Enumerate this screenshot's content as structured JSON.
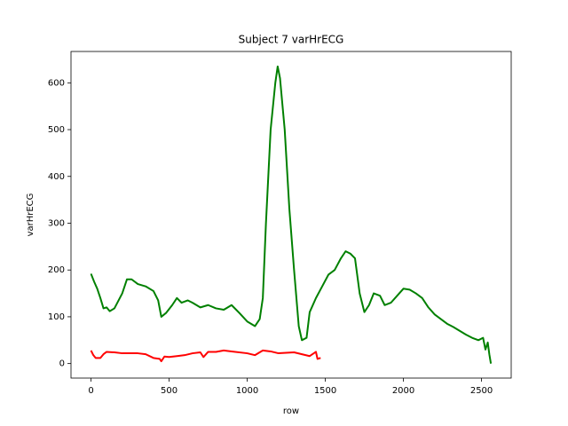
{
  "chart_data": {
    "type": "line",
    "title": "Subject 7 varHrECG",
    "x_label": "row",
    "y_label": "varHrECG",
    "xlim": [
      -128,
      2690
    ],
    "ylim": [
      -31,
      667
    ],
    "xticks": [
      0,
      500,
      1000,
      1500,
      2000,
      2500
    ],
    "yticks": [
      0,
      100,
      200,
      300,
      400,
      500,
      600
    ],
    "series": [
      {
        "color": "#008000",
        "x": [
          0,
          20,
          40,
          60,
          80,
          100,
          120,
          150,
          200,
          230,
          260,
          300,
          350,
          400,
          430,
          450,
          480,
          520,
          550,
          580,
          620,
          650,
          700,
          750,
          800,
          850,
          900,
          950,
          1000,
          1050,
          1080,
          1100,
          1120,
          1150,
          1180,
          1195,
          1210,
          1240,
          1270,
          1300,
          1330,
          1350,
          1380,
          1400,
          1440,
          1480,
          1520,
          1560,
          1600,
          1630,
          1660,
          1690,
          1720,
          1750,
          1780,
          1810,
          1850,
          1880,
          1920,
          1960,
          2000,
          2040,
          2080,
          2120,
          2160,
          2200,
          2240,
          2280,
          2320,
          2360,
          2400,
          2440,
          2480,
          2510,
          2525,
          2540,
          2550,
          2560
        ],
        "values": [
          192,
          175,
          160,
          140,
          118,
          120,
          112,
          118,
          150,
          180,
          180,
          170,
          165,
          155,
          135,
          100,
          108,
          125,
          140,
          130,
          135,
          130,
          120,
          125,
          118,
          115,
          125,
          108,
          90,
          80,
          95,
          140,
          300,
          500,
          600,
          635,
          610,
          500,
          330,
          200,
          80,
          50,
          55,
          110,
          140,
          165,
          190,
          200,
          225,
          240,
          235,
          225,
          150,
          110,
          125,
          150,
          145,
          125,
          130,
          145,
          160,
          158,
          150,
          140,
          120,
          105,
          95,
          85,
          78,
          70,
          62,
          55,
          50,
          55,
          30,
          45,
          20,
          0
        ]
      },
      {
        "color": "#ff0000",
        "x": [
          0,
          15,
          30,
          60,
          80,
          100,
          150,
          200,
          300,
          350,
          400,
          440,
          450,
          470,
          500,
          550,
          600,
          650,
          700,
          720,
          750,
          800,
          850,
          900,
          1000,
          1050,
          1100,
          1150,
          1200,
          1300,
          1350,
          1400,
          1440,
          1450,
          1470
        ],
        "values": [
          28,
          18,
          12,
          12,
          20,
          25,
          24,
          22,
          22,
          20,
          12,
          10,
          5,
          15,
          14,
          16,
          18,
          22,
          24,
          14,
          25,
          25,
          28,
          26,
          22,
          18,
          28,
          26,
          22,
          24,
          20,
          16,
          25,
          10,
          12
        ]
      }
    ]
  }
}
